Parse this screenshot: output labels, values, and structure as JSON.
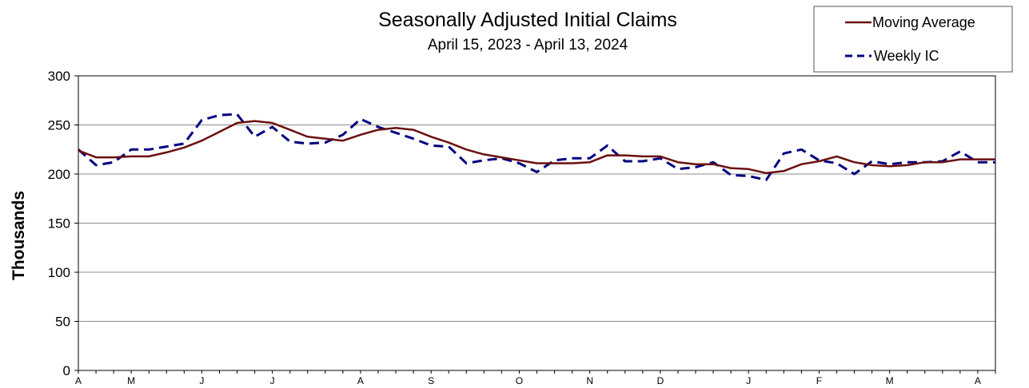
{
  "chart_data": {
    "type": "line",
    "title": "Seasonally Adjusted Initial Claims",
    "subtitle": "April 15, 2023 - April 13, 2024",
    "ylabel": "Thousands",
    "xlabel": "",
    "ylim": [
      0,
      300
    ],
    "yticks": [
      0,
      50,
      100,
      150,
      200,
      250,
      300
    ],
    "grid": true,
    "legend_position": "top-right",
    "x_tick_labels": [
      "A",
      "M",
      "J",
      "J",
      "A",
      "S",
      "O",
      "N",
      "D",
      "J",
      "F",
      "M",
      "A"
    ],
    "x_tick_index": [
      0,
      3,
      7,
      11,
      16,
      20,
      25,
      29,
      33,
      38,
      42,
      46,
      51
    ],
    "series": [
      {
        "name": "Moving Average",
        "color": "#6b0f0f",
        "style": "solid",
        "values": [
          224,
          217,
          217,
          218,
          218,
          222,
          227,
          234,
          243,
          252,
          254,
          252,
          245,
          238,
          236,
          234,
          240,
          245,
          247,
          245,
          238,
          232,
          225,
          220,
          217,
          214,
          211,
          211,
          211,
          212,
          219,
          219,
          218,
          218,
          212,
          210,
          210,
          206,
          205,
          201,
          203,
          210,
          213,
          218,
          212,
          209,
          208,
          209,
          212,
          212,
          215,
          215,
          215
        ]
      },
      {
        "name": "Weekly IC",
        "color": "#000080",
        "style": "dashed",
        "values": [
          225,
          209,
          212,
          225,
          225,
          228,
          231,
          255,
          260,
          261,
          238,
          248,
          233,
          231,
          232,
          240,
          256,
          248,
          242,
          236,
          229,
          228,
          211,
          214,
          216,
          211,
          202,
          214,
          216,
          216,
          229,
          213,
          213,
          216,
          205,
          207,
          212,
          199,
          198,
          194,
          221,
          225,
          214,
          211,
          200,
          213,
          210,
          212,
          212,
          213,
          223,
          212,
          212
        ]
      }
    ]
  }
}
